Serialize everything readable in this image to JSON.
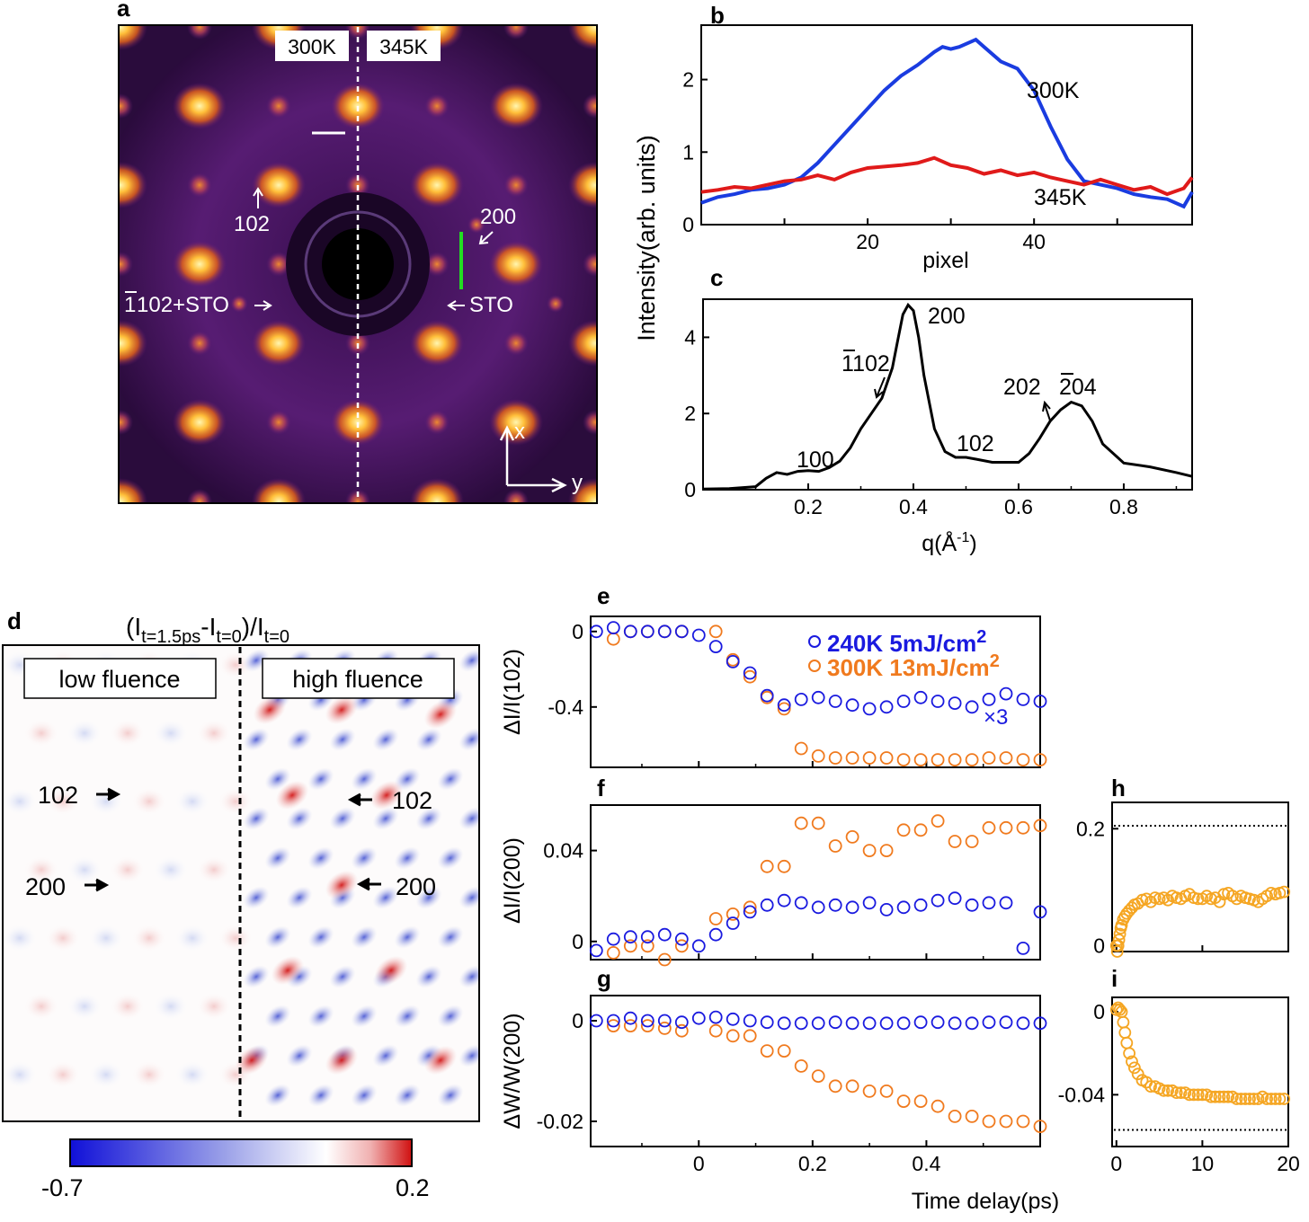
{
  "panels": {
    "a": {
      "label": "a",
      "temp_left": "300K",
      "temp_right": "345K",
      "peaks": {
        "p102": "102",
        "p200": "200",
        "p102bar": "102+STO",
        "p102bar_overline": "1",
        "sto": "STO"
      },
      "axis_x": "x",
      "axis_y": "y"
    },
    "b": {
      "label": "b",
      "ylabel": "Intensity(arb. units)",
      "xlabel": "pixel",
      "xticks": [
        "20",
        "40"
      ],
      "yticks": [
        "0",
        "1",
        "2"
      ],
      "series_labels": [
        "300K",
        "345K"
      ]
    },
    "c": {
      "label": "c",
      "xlabel": "q(Å",
      "xlabel_sup": "-1",
      "xlabel_end": ")",
      "xticks": [
        "0.2",
        "0.4",
        "0.6",
        "0.8"
      ],
      "yticks": [
        "0",
        "2",
        "4"
      ],
      "peaks": [
        "200",
        "102",
        "100",
        "102",
        "202",
        "204"
      ]
    },
    "d": {
      "label": "d",
      "title_main": "(I",
      "title_sub1": "t=1.5ps",
      "title_mid": "-I",
      "title_sub2": "t=0",
      "title_mid2": ")/I",
      "title_sub3": "t=0",
      "box_left": "low fluence",
      "box_right": "high fluence",
      "arrows": [
        "102",
        "200",
        "102",
        "200"
      ],
      "cbar_min": "-0.7",
      "cbar_max": "0.2"
    },
    "e": {
      "label": "e",
      "ylabel": "ΔI/I(102)",
      "yticks": [
        "0",
        "-0.4"
      ],
      "legend": [
        {
          "text": "240K 5mJ/cm",
          "sup": "2",
          "color": "#1a1adf"
        },
        {
          "text": "300K 13mJ/cm",
          "sup": "2",
          "color": "#f07a1e"
        }
      ],
      "mult": "×3"
    },
    "f": {
      "label": "f",
      "ylabel": "ΔI/I(200)",
      "yticks": [
        "0.04",
        "0"
      ]
    },
    "g": {
      "label": "g",
      "ylabel": "ΔW/W(200)",
      "yticks": [
        "0",
        "-0.02"
      ],
      "xticks": [
        "0",
        "0.2",
        "0.4"
      ]
    },
    "h": {
      "label": "h",
      "yticks": [
        "0.2",
        "0"
      ]
    },
    "i": {
      "label": "i",
      "yticks": [
        "0",
        "-0.04"
      ],
      "xticks": [
        "0",
        "10",
        "20"
      ]
    },
    "xlabel_time": "Time delay(ps)"
  },
  "colors": {
    "blue": "#1a1adf",
    "orange": "#f07a1e",
    "red": "#e01a1a",
    "gold": "#f5a623"
  },
  "chart_data": [
    {
      "id": "b",
      "type": "line",
      "xlabel": "pixel",
      "ylabel": "Intensity(arb. units)",
      "xlim": [
        0,
        59
      ],
      "ylim": [
        0,
        2.75
      ],
      "series": [
        {
          "name": "300K",
          "color": "#1a3ce0",
          "x": [
            0,
            2,
            4,
            6,
            8,
            10,
            12,
            14,
            16,
            18,
            20,
            22,
            24,
            26,
            28,
            29,
            30,
            31,
            32,
            33,
            34,
            36,
            38,
            40,
            42,
            44,
            46,
            48,
            50,
            52,
            54,
            56,
            58,
            59
          ],
          "values": [
            0.3,
            0.38,
            0.42,
            0.48,
            0.5,
            0.55,
            0.65,
            0.85,
            1.1,
            1.35,
            1.6,
            1.85,
            2.05,
            2.2,
            2.38,
            2.45,
            2.42,
            2.45,
            2.5,
            2.55,
            2.45,
            2.25,
            2.15,
            1.85,
            1.35,
            0.9,
            0.6,
            0.55,
            0.5,
            0.42,
            0.38,
            0.35,
            0.25,
            0.45
          ]
        },
        {
          "name": "345K",
          "color": "#e01a1a",
          "x": [
            0,
            2,
            4,
            6,
            8,
            10,
            12,
            14,
            16,
            18,
            20,
            22,
            24,
            26,
            28,
            30,
            32,
            34,
            36,
            38,
            40,
            42,
            44,
            46,
            48,
            50,
            52,
            54,
            56,
            58,
            59
          ],
          "values": [
            0.45,
            0.48,
            0.52,
            0.5,
            0.55,
            0.6,
            0.62,
            0.68,
            0.62,
            0.72,
            0.78,
            0.8,
            0.82,
            0.85,
            0.92,
            0.82,
            0.78,
            0.7,
            0.75,
            0.68,
            0.72,
            0.65,
            0.6,
            0.55,
            0.62,
            0.55,
            0.48,
            0.52,
            0.42,
            0.5,
            0.65
          ]
        }
      ]
    },
    {
      "id": "c",
      "type": "line",
      "xlabel": "q(Å-1)",
      "xlim": [
        0,
        0.93
      ],
      "ylim": [
        0,
        5
      ],
      "series": [
        {
          "name": "profile",
          "color": "#000",
          "x": [
            0,
            0.05,
            0.1,
            0.12,
            0.14,
            0.16,
            0.18,
            0.2,
            0.22,
            0.24,
            0.26,
            0.28,
            0.3,
            0.32,
            0.34,
            0.36,
            0.37,
            0.38,
            0.39,
            0.4,
            0.41,
            0.42,
            0.44,
            0.46,
            0.48,
            0.5,
            0.52,
            0.55,
            0.6,
            0.62,
            0.64,
            0.66,
            0.68,
            0.7,
            0.72,
            0.74,
            0.76,
            0.8,
            0.85,
            0.9,
            0.93
          ],
          "values": [
            0.02,
            0.03,
            0.08,
            0.3,
            0.45,
            0.4,
            0.48,
            0.5,
            0.48,
            0.58,
            0.75,
            1.1,
            1.6,
            2.0,
            2.4,
            3.2,
            3.9,
            4.6,
            4.85,
            4.7,
            4.0,
            3.0,
            1.6,
            1.0,
            0.85,
            0.85,
            0.8,
            0.72,
            0.72,
            0.95,
            1.35,
            1.8,
            2.1,
            2.3,
            2.2,
            1.8,
            1.2,
            0.7,
            0.6,
            0.45,
            0.35
          ]
        }
      ]
    },
    {
      "id": "e",
      "type": "scatter",
      "xlim": [
        -0.19,
        0.6
      ],
      "ylim": [
        -0.72,
        0.08
      ],
      "series": [
        {
          "name": "240K 5mJ/cm2",
          "x": [
            -0.18,
            -0.15,
            -0.12,
            -0.09,
            -0.06,
            -0.03,
            0.0,
            0.03,
            0.06,
            0.09,
            0.12,
            0.15,
            0.18,
            0.21,
            0.24,
            0.27,
            0.3,
            0.33,
            0.36,
            0.39,
            0.42,
            0.45,
            0.48,
            0.51,
            0.54,
            0.57,
            0.6
          ],
          "values": [
            0,
            0.02,
            0.0,
            0.0,
            0.0,
            0.0,
            -0.02,
            -0.08,
            -0.16,
            -0.22,
            -0.34,
            -0.39,
            -0.36,
            -0.35,
            -0.37,
            -0.39,
            -0.41,
            -0.4,
            -0.37,
            -0.35,
            -0.37,
            -0.38,
            -0.4,
            -0.36,
            -0.33,
            -0.36,
            -0.37
          ]
        },
        {
          "name": "300K 13mJ/cm2",
          "x": [
            -0.15,
            -0.12,
            -0.09,
            -0.06,
            -0.03,
            0.03,
            0.06,
            0.09,
            0.12,
            0.15,
            0.18,
            0.21,
            0.24,
            0.27,
            0.3,
            0.33,
            0.36,
            0.39,
            0.42,
            0.45,
            0.48,
            0.51,
            0.54,
            0.57,
            0.6
          ],
          "values": [
            -0.04,
            0.0,
            0.0,
            0.0,
            0.0,
            0.0,
            -0.15,
            -0.24,
            -0.35,
            -0.41,
            -0.62,
            -0.66,
            -0.67,
            -0.67,
            -0.67,
            -0.67,
            -0.68,
            -0.68,
            -0.68,
            -0.68,
            -0.68,
            -0.67,
            -0.67,
            -0.68,
            -0.68
          ]
        }
      ]
    },
    {
      "id": "f",
      "type": "scatter",
      "xlim": [
        -0.19,
        0.6
      ],
      "ylim": [
        -0.008,
        0.06
      ],
      "series": [
        {
          "name": "240K",
          "x": [
            -0.18,
            -0.15,
            -0.12,
            -0.09,
            -0.06,
            -0.03,
            0.0,
            0.03,
            0.06,
            0.09,
            0.12,
            0.15,
            0.18,
            0.21,
            0.24,
            0.27,
            0.3,
            0.33,
            0.36,
            0.39,
            0.42,
            0.45,
            0.48,
            0.51,
            0.54,
            0.57,
            0.6
          ],
          "values": [
            -0.004,
            0.001,
            0.002,
            0.002,
            0.003,
            0.001,
            -0.002,
            0.003,
            0.008,
            0.013,
            0.016,
            0.018,
            0.017,
            0.015,
            0.016,
            0.015,
            0.017,
            0.014,
            0.015,
            0.016,
            0.018,
            0.019,
            0.016,
            0.017,
            0.017,
            -0.003,
            0.013
          ]
        },
        {
          "name": "300K",
          "x": [
            -0.15,
            -0.12,
            -0.09,
            -0.06,
            -0.03,
            0.03,
            0.06,
            0.09,
            0.12,
            0.15,
            0.18,
            0.21,
            0.24,
            0.27,
            0.3,
            0.33,
            0.36,
            0.39,
            0.42,
            0.45,
            0.48,
            0.51,
            0.54,
            0.57,
            0.6
          ],
          "values": [
            -0.005,
            -0.002,
            -0.002,
            -0.008,
            -0.002,
            0.01,
            0.012,
            0.015,
            0.033,
            0.033,
            0.052,
            0.052,
            0.042,
            0.046,
            0.04,
            0.04,
            0.049,
            0.049,
            0.053,
            0.044,
            0.044,
            0.05,
            0.05,
            0.05,
            0.051
          ]
        }
      ]
    },
    {
      "id": "g",
      "type": "scatter",
      "xlim": [
        -0.19,
        0.6
      ],
      "ylim": [
        -0.025,
        0.005
      ],
      "series": [
        {
          "name": "240K",
          "x": [
            -0.18,
            -0.15,
            -0.12,
            -0.09,
            -0.06,
            -0.03,
            0.0,
            0.03,
            0.06,
            0.09,
            0.12,
            0.15,
            0.18,
            0.21,
            0.24,
            0.27,
            0.3,
            0.33,
            0.36,
            0.39,
            0.42,
            0.45,
            0.48,
            0.51,
            0.54,
            0.57,
            0.6
          ],
          "values": [
            0,
            0,
            0.0005,
            0,
            0,
            -0.0003,
            0.0005,
            0.0007,
            0.0003,
            0,
            -0.0003,
            -0.0005,
            -0.0005,
            -0.0005,
            -0.0003,
            -0.0005,
            -0.0005,
            -0.0005,
            -0.0005,
            -0.0003,
            -0.0003,
            -0.0005,
            -0.0005,
            -0.0003,
            -0.0003,
            -0.0005,
            -0.0005
          ]
        },
        {
          "name": "300K",
          "x": [
            -0.15,
            -0.12,
            -0.09,
            -0.06,
            -0.03,
            0.03,
            0.06,
            0.09,
            0.12,
            0.15,
            0.18,
            0.21,
            0.24,
            0.27,
            0.3,
            0.33,
            0.36,
            0.39,
            0.42,
            0.45,
            0.48,
            0.51,
            0.54,
            0.57,
            0.6
          ],
          "values": [
            -0.001,
            -0.001,
            -0.001,
            -0.0015,
            -0.002,
            -0.002,
            -0.003,
            -0.003,
            -0.006,
            -0.006,
            -0.009,
            -0.011,
            -0.013,
            -0.013,
            -0.014,
            -0.014,
            -0.016,
            -0.016,
            -0.017,
            -0.019,
            -0.019,
            -0.02,
            -0.02,
            -0.02,
            -0.021
          ]
        }
      ]
    },
    {
      "id": "h",
      "type": "scatter",
      "xlim": [
        -0.5,
        20
      ],
      "ylim": [
        -0.01,
        0.245
      ],
      "reference_line": 0.205,
      "series": [
        {
          "name": "orange",
          "x": [
            0,
            0.1,
            0.2,
            0.3,
            0.4,
            0.5,
            0.6,
            0.8,
            1.0,
            1.2,
            1.5,
            1.8,
            2.1,
            2.5,
            3,
            3.5,
            4,
            4.5,
            5,
            5.5,
            6,
            6.5,
            7,
            7.5,
            8,
            8.5,
            9,
            9.5,
            10,
            10.5,
            11,
            11.5,
            12,
            12.5,
            13,
            13.5,
            14,
            14.5,
            15,
            15.5,
            16,
            16.5,
            17,
            17.5,
            18,
            18.5,
            19,
            19.5
          ],
          "values": [
            0.0,
            -0.01,
            0.0,
            0.01,
            0.02,
            0.03,
            0.035,
            0.045,
            0.05,
            0.055,
            0.06,
            0.065,
            0.07,
            0.072,
            0.078,
            0.08,
            0.075,
            0.082,
            0.08,
            0.082,
            0.078,
            0.085,
            0.082,
            0.08,
            0.085,
            0.088,
            0.082,
            0.08,
            0.08,
            0.085,
            0.08,
            0.082,
            0.075,
            0.088,
            0.09,
            0.085,
            0.08,
            0.085,
            0.082,
            0.08,
            0.078,
            0.075,
            0.08,
            0.085,
            0.09,
            0.088,
            0.09,
            0.092
          ]
        }
      ]
    },
    {
      "id": "i",
      "type": "scatter",
      "xlim": [
        -0.5,
        20
      ],
      "ylim": [
        -0.065,
        0.007
      ],
      "reference_line": -0.057,
      "series": [
        {
          "name": "orange",
          "x": [
            0,
            0.2,
            0.4,
            0.6,
            0.8,
            1.0,
            1.2,
            1.5,
            1.8,
            2.1,
            2.5,
            3,
            3.5,
            4,
            4.5,
            5,
            5.5,
            6,
            6.5,
            7,
            7.5,
            8,
            8.5,
            9,
            9.5,
            10,
            10.5,
            11,
            11.5,
            12,
            12.5,
            13,
            13.5,
            14,
            14.5,
            15,
            15.5,
            16,
            16.5,
            17,
            17.5,
            18,
            18.5,
            19,
            19.5
          ],
          "values": [
            0.001,
            0.002,
            0.001,
            0.0,
            -0.005,
            -0.01,
            -0.015,
            -0.02,
            -0.024,
            -0.027,
            -0.03,
            -0.033,
            -0.034,
            -0.036,
            -0.036,
            -0.037,
            -0.038,
            -0.038,
            -0.038,
            -0.039,
            -0.039,
            -0.039,
            -0.04,
            -0.04,
            -0.04,
            -0.04,
            -0.04,
            -0.041,
            -0.041,
            -0.041,
            -0.041,
            -0.041,
            -0.041,
            -0.042,
            -0.042,
            -0.042,
            -0.042,
            -0.042,
            -0.042,
            -0.041,
            -0.042,
            -0.042,
            -0.042,
            -0.042,
            -0.042
          ]
        }
      ]
    }
  ]
}
